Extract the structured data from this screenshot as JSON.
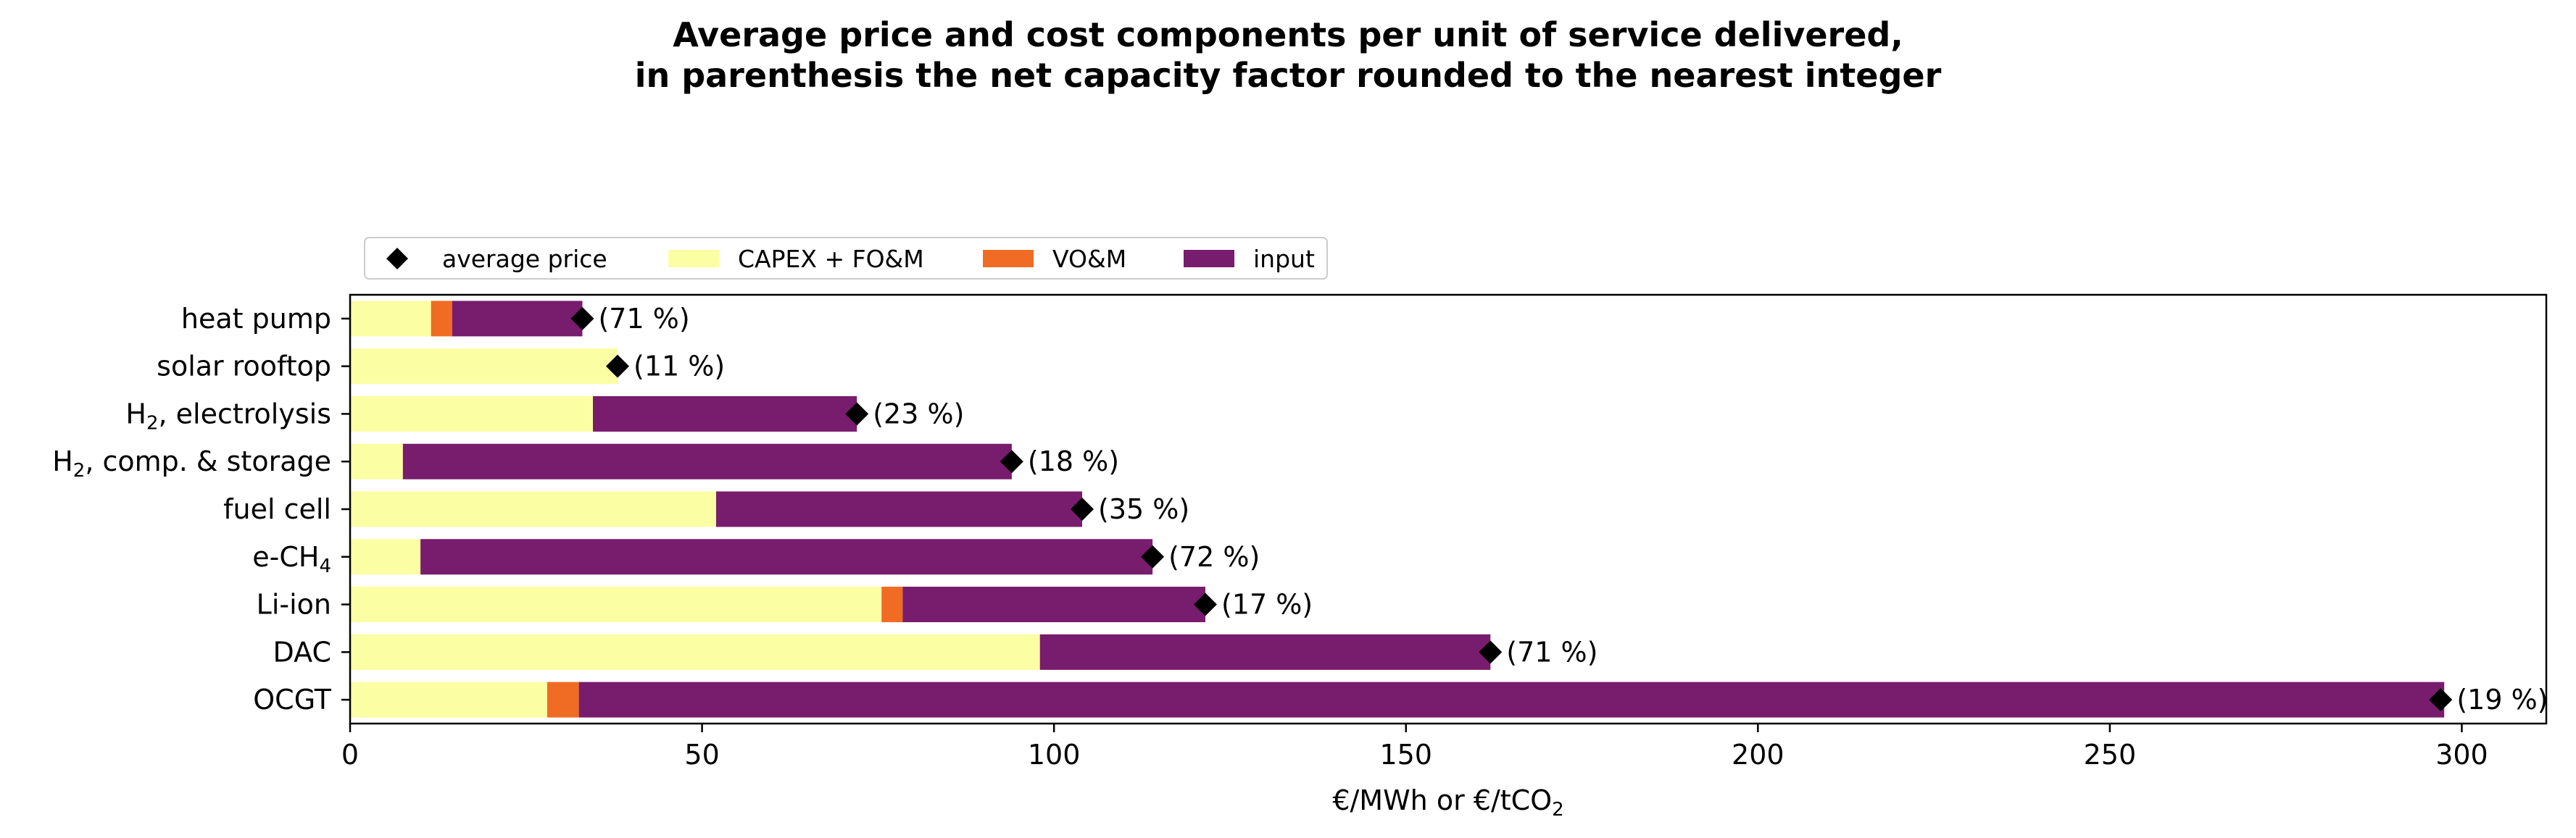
{
  "chart_data": {
    "type": "bar",
    "orientation": "horizontal",
    "stacked": true,
    "title_lines": [
      "Average price and cost components per unit of service delivered,",
      "in parenthesis the net capacity factor rounded to the nearest integer"
    ],
    "xlabel": "€/MWh or €/tCO",
    "xlabel_sub": "2",
    "xlim": [
      0,
      312
    ],
    "xticks": [
      0,
      50,
      100,
      150,
      200,
      250,
      300
    ],
    "grid": false,
    "legend_position": "top-left, above plot",
    "categories": [
      {
        "name": "heat pump",
        "sub": ""
      },
      {
        "name": "solar rooftop",
        "sub": ""
      },
      {
        "name": "H|2|, electrolysis",
        "sub": ""
      },
      {
        "name": "H|2|, comp. & storage",
        "sub": ""
      },
      {
        "name": "fuel cell",
        "sub": ""
      },
      {
        "name": "e-CH|4|",
        "sub": ""
      },
      {
        "name": "Li-ion",
        "sub": ""
      },
      {
        "name": "DAC",
        "sub": ""
      },
      {
        "name": "OCGT",
        "sub": ""
      }
    ],
    "series": [
      {
        "name": "CAPEX + FO&M",
        "color": "#fcfea4",
        "values": [
          11.5,
          38,
          34.5,
          7.5,
          52,
          10,
          75.5,
          98,
          28
        ]
      },
      {
        "name": "VO&M",
        "color": "#f06c24",
        "values": [
          3,
          0,
          0,
          0,
          0,
          0,
          3,
          0,
          4.5
        ]
      },
      {
        "name": "input",
        "color": "#781c6d",
        "values": [
          18.5,
          0,
          37.5,
          86.5,
          52,
          104,
          43,
          64,
          265
        ]
      }
    ],
    "average_price": {
      "name": "average price",
      "marker": "diamond",
      "color": "#000000",
      "values": [
        33,
        38,
        72,
        94,
        104,
        114,
        121.5,
        162,
        297
      ]
    },
    "capacity_factor_labels": [
      "(71 %)",
      "(11 %)",
      "(23 %)",
      "(18 %)",
      "(35 %)",
      "(72 %)",
      "(17 %)",
      "(71 %)",
      "(19 %)"
    ]
  }
}
